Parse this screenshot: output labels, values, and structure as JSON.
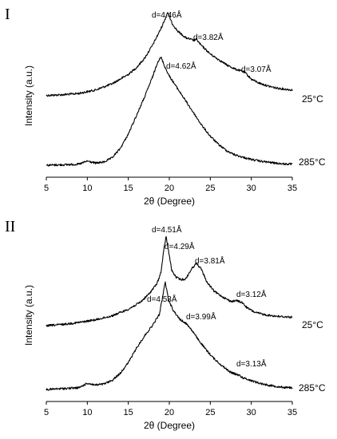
{
  "chart_data": [
    {
      "type": "line",
      "panel_label": "I",
      "xlabel": "2θ (Degree)",
      "ylabel": "Intensity (a.u.)",
      "xlim": [
        5,
        35
      ],
      "x_ticks": [
        "5",
        "10",
        "15",
        "20",
        "25",
        "30",
        "35"
      ],
      "series": [
        {
          "name": "25°C",
          "points": [
            [
              5,
              0.85
            ],
            [
              7,
              0.9
            ],
            [
              9,
              1.0
            ],
            [
              11,
              1.25
            ],
            [
              13,
              1.7
            ],
            [
              15,
              2.4
            ],
            [
              16,
              2.9
            ],
            [
              17,
              3.6
            ],
            [
              18,
              4.6
            ],
            [
              19,
              5.8
            ],
            [
              19.5,
              6.5
            ],
            [
              19.8,
              7.0
            ],
            [
              20.3,
              6.2
            ],
            [
              21,
              5.6
            ],
            [
              22,
              5.1
            ],
            [
              23,
              4.9
            ],
            [
              23.3,
              5.0
            ],
            [
              23.8,
              4.6
            ],
            [
              25,
              3.9
            ],
            [
              26,
              3.5
            ],
            [
              27,
              3.1
            ],
            [
              28,
              2.8
            ],
            [
              29,
              2.6
            ],
            [
              29.3,
              2.5
            ],
            [
              30,
              2.05
            ],
            [
              31,
              1.75
            ],
            [
              32,
              1.55
            ],
            [
              33,
              1.4
            ],
            [
              34,
              1.32
            ],
            [
              35,
              1.25
            ]
          ]
        },
        {
          "name": "285°C",
          "points": [
            [
              5,
              0.0
            ],
            [
              7,
              0.02
            ],
            [
              9,
              0.05
            ],
            [
              10,
              0.2
            ],
            [
              11,
              0.1
            ],
            [
              12,
              0.15
            ],
            [
              13,
              0.35
            ],
            [
              14,
              0.8
            ],
            [
              15,
              1.5
            ],
            [
              16,
              2.4
            ],
            [
              17,
              3.3
            ],
            [
              18,
              4.3
            ],
            [
              18.6,
              5.0
            ],
            [
              19,
              5.2
            ],
            [
              19.5,
              4.7
            ],
            [
              20,
              4.3
            ],
            [
              21,
              3.7
            ],
            [
              22,
              3.1
            ],
            [
              23,
              2.5
            ],
            [
              24,
              1.9
            ],
            [
              25,
              1.4
            ],
            [
              26,
              1.0
            ],
            [
              27,
              0.7
            ],
            [
              28,
              0.5
            ],
            [
              29,
              0.38
            ],
            [
              30,
              0.28
            ],
            [
              31,
              0.2
            ],
            [
              32,
              0.15
            ],
            [
              33,
              0.1
            ],
            [
              34,
              0.06
            ],
            [
              35,
              0.05
            ]
          ]
        }
      ],
      "annotations": [
        "d=4.46Å",
        "d=3.82Å",
        "d=3.07Å",
        "d=4.62Å"
      ]
    },
    {
      "type": "line",
      "panel_label": "II",
      "xlabel": "2θ (Degree)",
      "ylabel": "Intensity (a.u.)",
      "xlim": [
        5,
        35
      ],
      "x_ticks": [
        "5",
        "10",
        "15",
        "20",
        "25",
        "30",
        "35"
      ],
      "series": [
        {
          "name": "25°C",
          "points": [
            [
              5,
              0.6
            ],
            [
              7,
              0.7
            ],
            [
              9,
              0.85
            ],
            [
              11,
              1.05
            ],
            [
              13,
              1.35
            ],
            [
              15,
              1.85
            ],
            [
              16.5,
              2.4
            ],
            [
              17.5,
              3.0
            ],
            [
              18.5,
              3.8
            ],
            [
              19,
              4.7
            ],
            [
              19.3,
              6.2
            ],
            [
              19.6,
              7.4
            ],
            [
              19.9,
              6.3
            ],
            [
              20.3,
              4.8
            ],
            [
              20.8,
              4.3
            ],
            [
              21.4,
              4.1
            ],
            [
              22,
              4.15
            ],
            [
              22.7,
              4.9
            ],
            [
              23.3,
              5.35
            ],
            [
              23.9,
              4.9
            ],
            [
              24.6,
              3.9
            ],
            [
              25.5,
              3.2
            ],
            [
              26.5,
              2.8
            ],
            [
              27.5,
              2.45
            ],
            [
              28.3,
              2.5
            ],
            [
              28.9,
              2.35
            ],
            [
              29.5,
              1.95
            ],
            [
              30.5,
              1.6
            ],
            [
              32,
              1.4
            ],
            [
              33.5,
              1.3
            ],
            [
              35,
              1.25
            ]
          ]
        },
        {
          "name": "285°C",
          "points": [
            [
              5,
              0.0
            ],
            [
              7,
              0.05
            ],
            [
              9,
              0.1
            ],
            [
              10,
              0.35
            ],
            [
              11,
              0.25
            ],
            [
              12,
              0.3
            ],
            [
              13,
              0.5
            ],
            [
              14,
              0.9
            ],
            [
              15,
              1.5
            ],
            [
              16,
              2.3
            ],
            [
              17,
              3.0
            ],
            [
              18,
              3.6
            ],
            [
              18.8,
              4.2
            ],
            [
              19.2,
              5.2
            ],
            [
              19.5,
              6.0
            ],
            [
              19.9,
              5.0
            ],
            [
              20.5,
              4.4
            ],
            [
              21.3,
              3.9
            ],
            [
              22,
              3.7
            ],
            [
              22.6,
              3.4
            ],
            [
              23.5,
              2.8
            ],
            [
              24.5,
              2.2
            ],
            [
              25.5,
              1.7
            ],
            [
              26.5,
              1.3
            ],
            [
              27.5,
              0.95
            ],
            [
              28.5,
              0.8
            ],
            [
              29,
              0.65
            ],
            [
              30,
              0.5
            ],
            [
              31,
              0.35
            ],
            [
              32,
              0.25
            ],
            [
              33,
              0.18
            ],
            [
              34,
              0.12
            ],
            [
              35,
              0.1
            ]
          ]
        }
      ],
      "annotations": [
        "d=4.51Å",
        "d=4.29Å",
        "d=3.81Å",
        "d=3.12Å",
        "d=4.53Å",
        "d=3.99Å",
        "d=3.13Å"
      ]
    }
  ]
}
